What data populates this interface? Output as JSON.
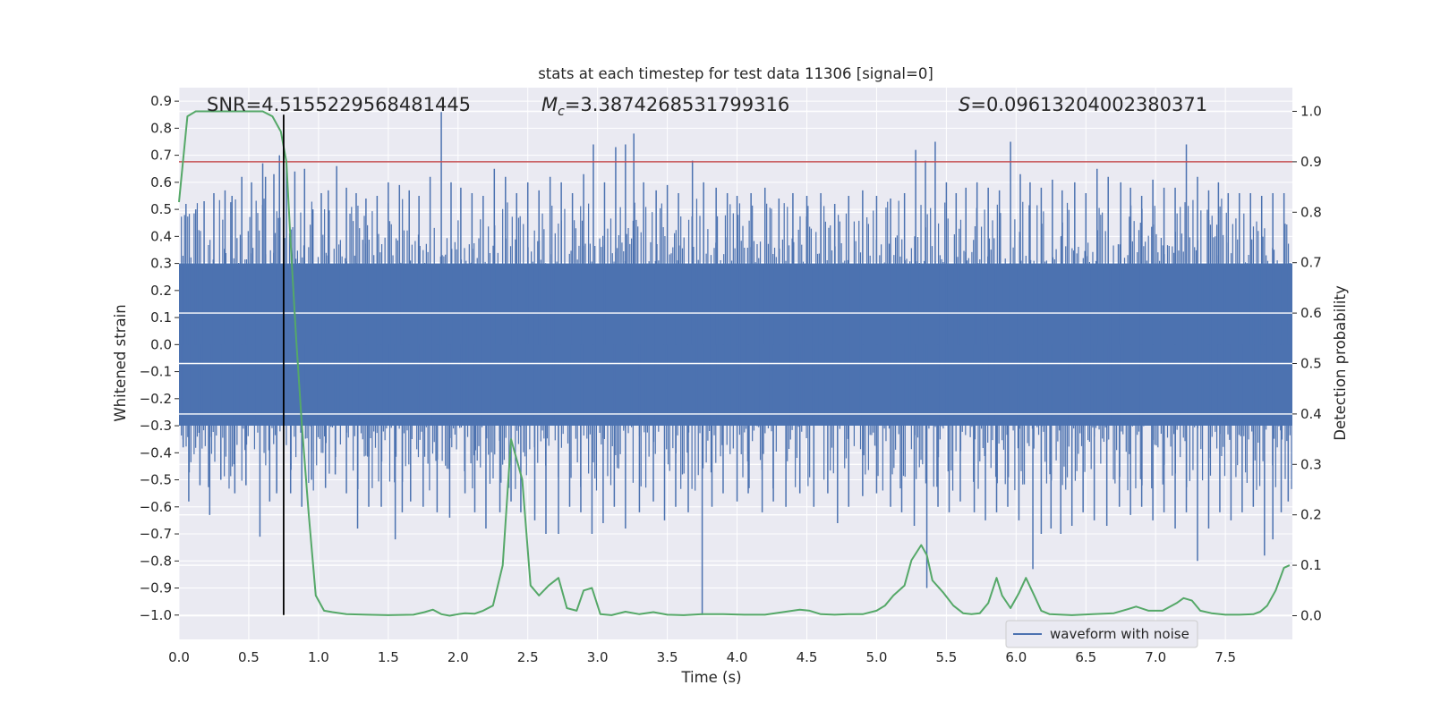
{
  "chart_data": {
    "type": "line",
    "title": "stats at each timestep for test data 11306 [signal=0]",
    "xlabel": "Time (s)",
    "ylabel_left": "Whitened strain",
    "ylabel_right": "Detection probability",
    "xlim": [
      0.0,
      7.98
    ],
    "ylim_left": [
      -1.09,
      0.95
    ],
    "ylim_right": [
      -0.047,
      1.047
    ],
    "x_ticks": [
      "0.0",
      "0.5",
      "1.0",
      "1.5",
      "2.0",
      "2.5",
      "3.0",
      "3.5",
      "4.0",
      "4.5",
      "5.0",
      "5.5",
      "6.0",
      "6.5",
      "7.0",
      "7.5"
    ],
    "y_ticks_left": [
      "0.9",
      "0.8",
      "0.7",
      "0.6",
      "0.5",
      "0.4",
      "0.3",
      "0.2",
      "0.1",
      "0.0",
      "−0.1",
      "−0.2",
      "−0.3",
      "−0.4",
      "−0.5",
      "−0.6",
      "−0.7",
      "−0.8",
      "−0.9",
      "−1.0"
    ],
    "y_ticks_right": [
      "0.0",
      "0.1",
      "0.2",
      "0.3",
      "0.4",
      "0.5",
      "0.6",
      "0.7",
      "0.8",
      "0.9",
      "1.0"
    ],
    "grid": true,
    "legend_placement": "lower-right",
    "annotations": {
      "snr": "SNR=4.5155229568481445",
      "mc_symbol": "M",
      "mc_sub": "c",
      "mc_value": "=3.3874268531799316",
      "s_symbol": "S",
      "s_value": "=0.09613204002380371"
    },
    "threshold_line": {
      "y_right": 0.9,
      "color": "#c44e52"
    },
    "vertical_marker": {
      "x": 0.75,
      "y_from": -1.0,
      "y_to": 0.85,
      "color": "#000000"
    },
    "series": [
      {
        "name": "waveform with noise",
        "color": "#4c72b0",
        "axis": "left",
        "band_upper": 0.3,
        "band_lower": -0.3,
        "peaks_up": [
          [
            0.05,
            0.52
          ],
          [
            0.12,
            0.5
          ],
          [
            0.18,
            0.53
          ],
          [
            0.25,
            0.56
          ],
          [
            0.33,
            0.57
          ],
          [
            0.38,
            0.55
          ],
          [
            0.45,
            0.62
          ],
          [
            0.52,
            0.6
          ],
          [
            0.6,
            0.67
          ],
          [
            0.62,
            0.62
          ],
          [
            0.68,
            0.63
          ],
          [
            0.72,
            0.7
          ],
          [
            0.77,
            0.67
          ],
          [
            0.83,
            0.64
          ],
          [
            0.9,
            0.65
          ],
          [
            0.96,
            0.5
          ],
          [
            1.02,
            0.56
          ],
          [
            1.07,
            0.57
          ],
          [
            1.13,
            0.66
          ],
          [
            1.2,
            0.58
          ],
          [
            1.27,
            0.56
          ],
          [
            1.34,
            0.54
          ],
          [
            1.42,
            0.55
          ],
          [
            1.5,
            0.6
          ],
          [
            1.58,
            0.59
          ],
          [
            1.65,
            0.57
          ],
          [
            1.72,
            0.55
          ],
          [
            1.8,
            0.62
          ],
          [
            1.88,
            0.86
          ],
          [
            1.95,
            0.6
          ],
          [
            2.02,
            0.58
          ],
          [
            2.1,
            0.56
          ],
          [
            2.18,
            0.55
          ],
          [
            2.26,
            0.65
          ],
          [
            2.34,
            0.62
          ],
          [
            2.42,
            0.56
          ],
          [
            2.5,
            0.6
          ],
          [
            2.58,
            0.57
          ],
          [
            2.66,
            0.62
          ],
          [
            2.74,
            0.6
          ],
          [
            2.82,
            0.56
          ],
          [
            2.9,
            0.63
          ],
          [
            2.97,
            0.74
          ],
          [
            3.05,
            0.6
          ],
          [
            3.13,
            0.73
          ],
          [
            3.2,
            0.74
          ],
          [
            3.26,
            0.78
          ],
          [
            3.33,
            0.6
          ],
          [
            3.42,
            0.57
          ],
          [
            3.5,
            0.59
          ],
          [
            3.58,
            0.56
          ],
          [
            3.68,
            0.68
          ],
          [
            3.76,
            0.6
          ],
          [
            3.85,
            0.58
          ],
          [
            3.93,
            0.56
          ],
          [
            4.0,
            0.55
          ],
          [
            4.1,
            0.56
          ],
          [
            4.2,
            0.58
          ],
          [
            4.3,
            0.54
          ],
          [
            4.4,
            0.56
          ],
          [
            4.5,
            0.55
          ],
          [
            4.6,
            0.56
          ],
          [
            4.7,
            0.52
          ],
          [
            4.8,
            0.55
          ],
          [
            4.9,
            0.57
          ],
          [
            5.0,
            0.55
          ],
          [
            5.1,
            0.54
          ],
          [
            5.2,
            0.56
          ],
          [
            5.28,
            0.72
          ],
          [
            5.35,
            0.68
          ],
          [
            5.42,
            0.75
          ],
          [
            5.5,
            0.6
          ],
          [
            5.57,
            0.56
          ],
          [
            5.64,
            0.58
          ],
          [
            5.72,
            0.6
          ],
          [
            5.8,
            0.58
          ],
          [
            5.88,
            0.57
          ],
          [
            5.96,
            0.75
          ],
          [
            6.03,
            0.63
          ],
          [
            6.1,
            0.6
          ],
          [
            6.18,
            0.58
          ],
          [
            6.26,
            0.61
          ],
          [
            6.33,
            0.57
          ],
          [
            6.42,
            0.6
          ],
          [
            6.5,
            0.56
          ],
          [
            6.58,
            0.65
          ],
          [
            6.66,
            0.62
          ],
          [
            6.75,
            0.6
          ],
          [
            6.82,
            0.58
          ],
          [
            6.9,
            0.55
          ],
          [
            6.98,
            0.61
          ],
          [
            7.06,
            0.58
          ],
          [
            7.14,
            0.58
          ],
          [
            7.22,
            0.74
          ],
          [
            7.3,
            0.62
          ],
          [
            7.38,
            0.57
          ],
          [
            7.45,
            0.6
          ],
          [
            7.52,
            0.56
          ],
          [
            7.6,
            0.56
          ],
          [
            7.68,
            0.56
          ],
          [
            7.76,
            0.55
          ],
          [
            7.84,
            0.56
          ],
          [
            7.92,
            0.56
          ]
        ],
        "peaks_down": [
          [
            0.03,
            -0.38
          ],
          [
            0.07,
            -0.58
          ],
          [
            0.15,
            -0.52
          ],
          [
            0.22,
            -0.63
          ],
          [
            0.3,
            -0.5
          ],
          [
            0.4,
            -0.55
          ],
          [
            0.48,
            -0.52
          ],
          [
            0.58,
            -0.71
          ],
          [
            0.65,
            -0.58
          ],
          [
            0.7,
            -0.55
          ],
          [
            0.8,
            -0.55
          ],
          [
            0.88,
            -0.6
          ],
          [
            0.95,
            -0.5
          ],
          [
            1.05,
            -0.53
          ],
          [
            1.12,
            -0.48
          ],
          [
            1.2,
            -0.55
          ],
          [
            1.28,
            -0.68
          ],
          [
            1.36,
            -0.6
          ],
          [
            1.45,
            -0.6
          ],
          [
            1.55,
            -0.72
          ],
          [
            1.6,
            -0.62
          ],
          [
            1.66,
            -0.58
          ],
          [
            1.75,
            -0.6
          ],
          [
            1.85,
            -0.62
          ],
          [
            1.94,
            -0.64
          ],
          [
            2.05,
            -0.55
          ],
          [
            2.12,
            -0.62
          ],
          [
            2.2,
            -0.68
          ],
          [
            2.3,
            -0.62
          ],
          [
            2.38,
            -0.58
          ],
          [
            2.45,
            -0.62
          ],
          [
            2.55,
            -0.65
          ],
          [
            2.63,
            -0.7
          ],
          [
            2.72,
            -0.7
          ],
          [
            2.8,
            -0.6
          ],
          [
            2.88,
            -0.62
          ],
          [
            2.96,
            -0.7
          ],
          [
            3.04,
            -0.66
          ],
          [
            3.12,
            -0.6
          ],
          [
            3.2,
            -0.68
          ],
          [
            3.3,
            -0.62
          ],
          [
            3.4,
            -0.58
          ],
          [
            3.48,
            -0.65
          ],
          [
            3.56,
            -0.6
          ],
          [
            3.65,
            -0.62
          ],
          [
            3.75,
            -1.0
          ],
          [
            3.82,
            -0.6
          ],
          [
            3.9,
            -0.55
          ],
          [
            4.0,
            -0.58
          ],
          [
            4.08,
            -0.55
          ],
          [
            4.18,
            -0.62
          ],
          [
            4.26,
            -0.58
          ],
          [
            4.35,
            -0.6
          ],
          [
            4.45,
            -0.55
          ],
          [
            4.55,
            -0.6
          ],
          [
            4.65,
            -0.55
          ],
          [
            4.72,
            -0.66
          ],
          [
            4.8,
            -0.6
          ],
          [
            4.9,
            -0.56
          ],
          [
            5.0,
            -0.55
          ],
          [
            5.1,
            -0.6
          ],
          [
            5.18,
            -0.62
          ],
          [
            5.27,
            -0.67
          ],
          [
            5.36,
            -0.9
          ],
          [
            5.44,
            -0.6
          ],
          [
            5.52,
            -0.62
          ],
          [
            5.6,
            -0.58
          ],
          [
            5.7,
            -0.62
          ],
          [
            5.78,
            -0.65
          ],
          [
            5.86,
            -0.62
          ],
          [
            5.94,
            -0.6
          ],
          [
            6.02,
            -0.65
          ],
          [
            6.12,
            -0.83
          ],
          [
            6.18,
            -0.7
          ],
          [
            6.25,
            -0.68
          ],
          [
            6.32,
            -0.7
          ],
          [
            6.4,
            -0.67
          ],
          [
            6.48,
            -0.62
          ],
          [
            6.56,
            -0.65
          ],
          [
            6.65,
            -0.67
          ],
          [
            6.74,
            -0.6
          ],
          [
            6.82,
            -0.63
          ],
          [
            6.9,
            -0.6
          ],
          [
            6.98,
            -0.65
          ],
          [
            7.06,
            -0.62
          ],
          [
            7.14,
            -0.68
          ],
          [
            7.22,
            -0.62
          ],
          [
            7.3,
            -0.8
          ],
          [
            7.38,
            -0.68
          ],
          [
            7.46,
            -0.62
          ],
          [
            7.54,
            -0.65
          ],
          [
            7.62,
            -0.62
          ],
          [
            7.7,
            -0.6
          ],
          [
            7.78,
            -0.78
          ],
          [
            7.84,
            -0.72
          ],
          [
            7.9,
            -0.62
          ],
          [
            7.95,
            -0.58
          ]
        ]
      },
      {
        "name": "",
        "color": "#55a868",
        "axis": "right",
        "x": [
          0.0,
          0.06,
          0.12,
          0.2,
          0.3,
          0.4,
          0.5,
          0.6,
          0.67,
          0.73,
          0.77,
          0.8,
          0.84,
          0.88,
          0.93,
          0.98,
          1.04,
          1.1,
          1.2,
          1.35,
          1.5,
          1.68,
          1.76,
          1.82,
          1.88,
          1.94,
          2.0,
          2.05,
          2.12,
          2.18,
          2.25,
          2.32,
          2.38,
          2.46,
          2.52,
          2.58,
          2.65,
          2.72,
          2.78,
          2.85,
          2.9,
          2.96,
          3.02,
          3.1,
          3.2,
          3.3,
          3.4,
          3.5,
          3.62,
          3.75,
          3.9,
          4.05,
          4.2,
          4.35,
          4.45,
          4.52,
          4.6,
          4.7,
          4.8,
          4.9,
          5.0,
          5.06,
          5.12,
          5.2,
          5.25,
          5.32,
          5.36,
          5.4,
          5.48,
          5.55,
          5.62,
          5.68,
          5.74,
          5.8,
          5.86,
          5.9,
          5.96,
          6.02,
          6.07,
          6.13,
          6.18,
          6.24,
          6.4,
          6.55,
          6.7,
          6.8,
          6.86,
          6.95,
          7.05,
          7.15,
          7.2,
          7.26,
          7.32,
          7.4,
          7.5,
          7.6,
          7.7,
          7.75,
          7.8,
          7.86,
          7.92,
          7.96
        ],
        "y": [
          0.82,
          0.99,
          1.0,
          1.0,
          1.0,
          1.0,
          1.0,
          1.0,
          0.99,
          0.96,
          0.9,
          0.74,
          0.55,
          0.38,
          0.2,
          0.04,
          0.01,
          0.007,
          0.003,
          0.002,
          0.001,
          0.002,
          0.007,
          0.012,
          0.003,
          0.0,
          0.003,
          0.005,
          0.004,
          0.01,
          0.02,
          0.1,
          0.35,
          0.27,
          0.06,
          0.04,
          0.06,
          0.075,
          0.015,
          0.01,
          0.05,
          0.055,
          0.003,
          0.001,
          0.008,
          0.003,
          0.007,
          0.002,
          0.001,
          0.003,
          0.003,
          0.002,
          0.002,
          0.008,
          0.012,
          0.01,
          0.003,
          0.002,
          0.003,
          0.003,
          0.01,
          0.02,
          0.04,
          0.06,
          0.11,
          0.14,
          0.12,
          0.07,
          0.045,
          0.02,
          0.005,
          0.003,
          0.005,
          0.025,
          0.075,
          0.04,
          0.015,
          0.045,
          0.075,
          0.04,
          0.01,
          0.003,
          0.001,
          0.003,
          0.005,
          0.013,
          0.018,
          0.01,
          0.01,
          0.025,
          0.035,
          0.03,
          0.01,
          0.005,
          0.002,
          0.002,
          0.003,
          0.008,
          0.02,
          0.05,
          0.095,
          0.1
        ]
      }
    ]
  }
}
